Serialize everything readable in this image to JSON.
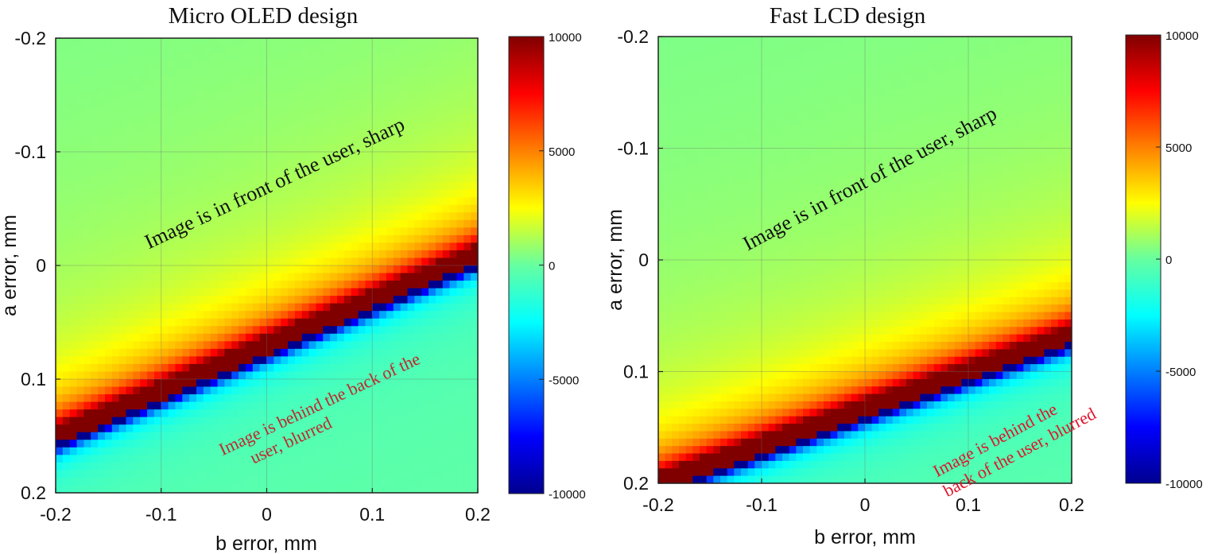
{
  "chart_data": [
    {
      "type": "heatmap",
      "title": "Micro OLED design",
      "xlabel": "b error, mm",
      "ylabel": "a error, mm",
      "xlim": [
        -0.2,
        0.2
      ],
      "ylim": [
        -0.2,
        0.2
      ],
      "y_reversed": true,
      "xticks": [
        "-0.2",
        "-0.1",
        "0",
        "0.1",
        "0.2"
      ],
      "yticks": [
        "-0.2",
        "-0.1",
        "0",
        "0.1",
        "0.2"
      ],
      "grid": true,
      "colormap": "jet",
      "clim": [
        -10000,
        10000
      ],
      "colorbar_ticks": [
        "10000",
        "5000",
        "0",
        "-5000",
        "-10000"
      ],
      "singularity_line": {
        "a_at_b_min": 0.158,
        "a_at_b_max": -0.002
      },
      "annotations": [
        {
          "text": "Image is in front of the user, sharp",
          "color": "#111111"
        },
        {
          "text": "Image is behind the back of the",
          "color": "#c0282e"
        },
        {
          "text": "user, blurred",
          "color": "#c0282e"
        }
      ]
    },
    {
      "type": "heatmap",
      "title": "Fast LCD design",
      "xlabel": "b error, mm",
      "ylabel": "a error, mm",
      "xlim": [
        -0.2,
        0.2
      ],
      "ylim": [
        -0.2,
        0.2
      ],
      "y_reversed": true,
      "xticks": [
        "-0.2",
        "-0.1",
        "0",
        "0.1",
        "0.2"
      ],
      "yticks": [
        "-0.2",
        "-0.1",
        "0",
        "0.1",
        "0.2"
      ],
      "grid": true,
      "colormap": "jet",
      "clim": [
        -10000,
        10000
      ],
      "colorbar_ticks": [
        "10000",
        "5000",
        "0",
        "-5000",
        "-10000"
      ],
      "singularity_line": {
        "a_at_b_min": 0.207,
        "a_at_b_max": 0.075
      },
      "annotations": [
        {
          "text": "Image is in front of the user, sharp",
          "color": "#111111"
        },
        {
          "text": "Image is behind the",
          "color": "#e0142a"
        },
        {
          "text": "back of the user, blurred",
          "color": "#e0142a"
        }
      ]
    }
  ]
}
